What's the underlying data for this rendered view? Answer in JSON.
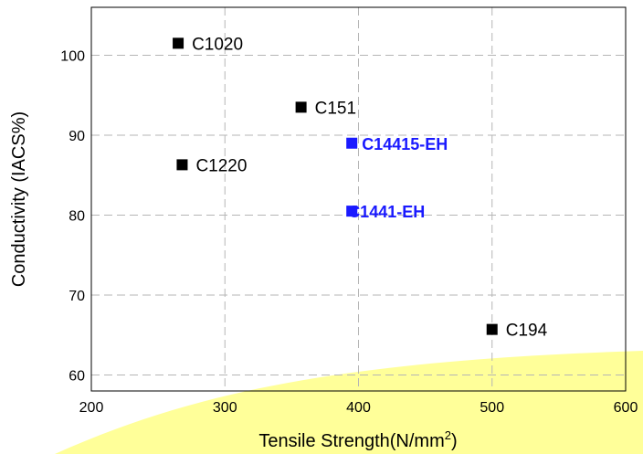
{
  "chart_data": {
    "type": "scatter",
    "title": "",
    "xlabel": "Tensile Strength(N/mm",
    "xlabel_sup": "2",
    "xlabel_end": ")",
    "ylabel": "Conductivity (IACS%)",
    "xlim": [
      200,
      600
    ],
    "ylim": [
      58,
      106
    ],
    "x_ticks": [
      200,
      300,
      400,
      500,
      600
    ],
    "y_ticks": [
      60,
      70,
      80,
      90,
      100
    ],
    "grid": true,
    "colors": {
      "default": "#000000",
      "highlight": "#1a1aff",
      "band": "#ffff99"
    },
    "points": [
      {
        "label": "C1020",
        "x": 265,
        "y": 101.5,
        "highlight": false
      },
      {
        "label": "C151",
        "x": 357,
        "y": 93.5,
        "highlight": false
      },
      {
        "label": "C14415-EH",
        "x": 395,
        "y": 89,
        "highlight": true
      },
      {
        "label": "C1220",
        "x": 268,
        "y": 86.3,
        "highlight": false
      },
      {
        "label": "C1441-EH",
        "x": 395,
        "y": 80.5,
        "highlight": true
      },
      {
        "label": "C194",
        "x": 500,
        "y": 65.7,
        "highlight": false
      }
    ]
  }
}
